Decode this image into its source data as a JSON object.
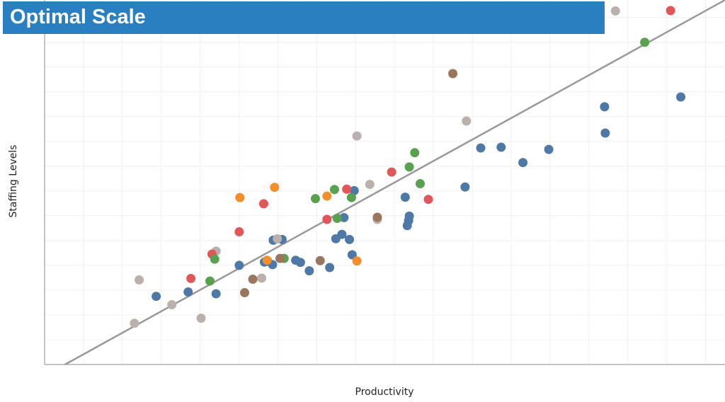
{
  "title": "Optimal Scale",
  "chart_data": {
    "type": "scatter",
    "title": "Optimal Scale",
    "xlabel": "Productivity",
    "ylabel": "Staffing Levels",
    "xlim": [
      0,
      100
    ],
    "ylim": [
      0,
      100
    ],
    "grid": true,
    "trend_line": {
      "from": [
        3,
        0
      ],
      "to": [
        100,
        100
      ]
    },
    "series": [
      {
        "name": "Blue",
        "color": "#4e79a7",
        "points": [
          [
            16.4,
            18.7
          ],
          [
            21.1,
            19.9
          ],
          [
            25.2,
            19.4
          ],
          [
            28.6,
            27.2
          ],
          [
            32.3,
            28.1
          ],
          [
            32.8,
            28.3
          ],
          [
            33.5,
            27.4
          ],
          [
            33.6,
            34.1
          ],
          [
            34.9,
            34.3
          ],
          [
            36.9,
            28.6
          ],
          [
            37.6,
            28.0
          ],
          [
            38.9,
            25.7
          ],
          [
            41.9,
            26.6
          ],
          [
            42.8,
            34.5
          ],
          [
            43.7,
            35.7
          ],
          [
            44.0,
            40.3
          ],
          [
            44.8,
            34.3
          ],
          [
            45.2,
            30.1
          ],
          [
            45.5,
            47.7
          ],
          [
            53.0,
            45.9
          ],
          [
            53.3,
            38.1
          ],
          [
            53.5,
            39.5
          ],
          [
            53.6,
            40.7
          ],
          [
            61.8,
            48.7
          ],
          [
            64.1,
            59.4
          ],
          [
            67.1,
            59.6
          ],
          [
            70.3,
            55.4
          ],
          [
            74.1,
            59.0
          ],
          [
            82.3,
            70.7
          ],
          [
            82.4,
            63.5
          ],
          [
            93.5,
            73.4
          ]
        ]
      },
      {
        "name": "Gray",
        "color": "#bab0ac",
        "points": [
          [
            13.2,
            11.3
          ],
          [
            13.9,
            23.2
          ],
          [
            18.7,
            16.4
          ],
          [
            23.0,
            12.7
          ],
          [
            25.2,
            31.1
          ],
          [
            31.9,
            23.7
          ],
          [
            34.2,
            34.5
          ],
          [
            45.9,
            62.7
          ],
          [
            47.8,
            49.4
          ],
          [
            48.9,
            39.8
          ],
          [
            62.0,
            66.8
          ],
          [
            83.9,
            97.0
          ]
        ]
      },
      {
        "name": "Red",
        "color": "#e15759",
        "points": [
          [
            21.5,
            23.6
          ],
          [
            24.6,
            30.3
          ],
          [
            28.6,
            36.4
          ],
          [
            32.2,
            44.1
          ],
          [
            41.5,
            39.8
          ],
          [
            44.4,
            48.1
          ],
          [
            51.0,
            52.8
          ],
          [
            56.4,
            45.3
          ],
          [
            92.0,
            97.1
          ]
        ]
      },
      {
        "name": "Green",
        "color": "#59a14f",
        "points": [
          [
            24.3,
            22.9
          ],
          [
            25.0,
            28.9
          ],
          [
            35.2,
            29.1
          ],
          [
            39.8,
            45.5
          ],
          [
            42.6,
            48.0
          ],
          [
            43.0,
            40.1
          ],
          [
            45.1,
            45.8
          ],
          [
            53.6,
            54.2
          ],
          [
            54.4,
            58.1
          ],
          [
            55.2,
            49.6
          ],
          [
            88.2,
            88.4
          ]
        ]
      },
      {
        "name": "Brown",
        "color": "#9c755f",
        "points": [
          [
            29.4,
            19.7
          ],
          [
            30.6,
            23.4
          ],
          [
            34.6,
            29.1
          ],
          [
            40.5,
            28.5
          ],
          [
            48.9,
            40.4
          ],
          [
            60.0,
            79.8
          ]
        ]
      },
      {
        "name": "Orange",
        "color": "#f28e2b",
        "points": [
          [
            28.7,
            45.8
          ],
          [
            32.7,
            28.6
          ],
          [
            33.8,
            48.6
          ],
          [
            41.5,
            46.2
          ],
          [
            45.9,
            28.4
          ]
        ]
      }
    ]
  }
}
